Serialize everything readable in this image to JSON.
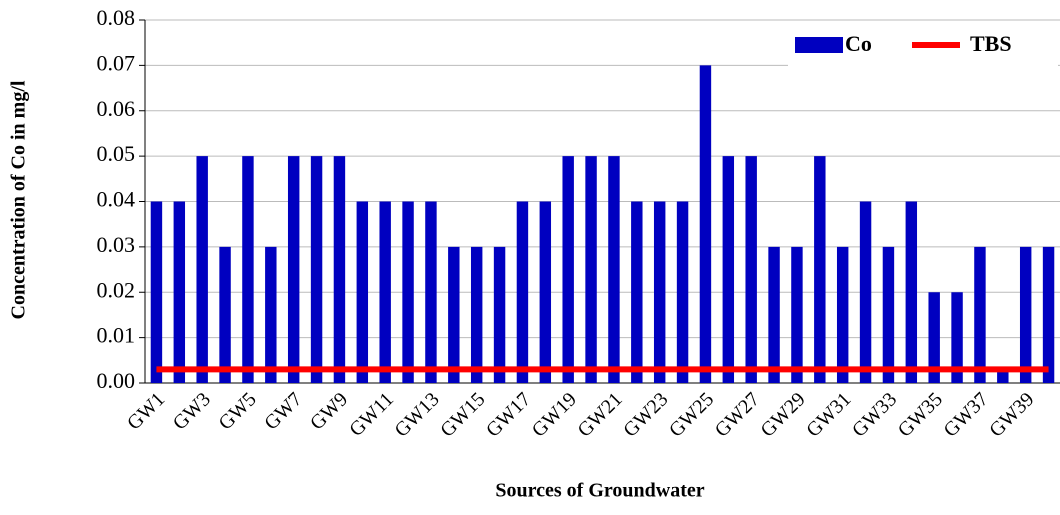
{
  "chart_data": {
    "type": "bar",
    "y_label": "Concentration of Co in mg/l",
    "x_label": "Sources of Groundwater",
    "categories": [
      "GW1",
      null,
      "GW3",
      null,
      "GW5",
      null,
      "GW7",
      null,
      "GW9",
      null,
      "GW11",
      null,
      "GW13",
      null,
      "GW15",
      null,
      "GW17",
      null,
      "GW19",
      null,
      "GW21",
      null,
      "GW23",
      null,
      "GW25",
      null,
      "GW27",
      null,
      "GW29",
      null,
      "GW31",
      null,
      "GW33",
      null,
      "GW35",
      null,
      "GW37",
      null,
      "GW39",
      null
    ],
    "series": [
      {
        "name": "Co",
        "type": "bar",
        "color": "#0000c0",
        "values": [
          0.04,
          0.04,
          0.05,
          0.03,
          0.05,
          0.03,
          0.05,
          0.05,
          0.05,
          0.04,
          0.04,
          0.04,
          0.04,
          0.03,
          0.03,
          0.03,
          0.04,
          0.04,
          0.05,
          0.05,
          0.05,
          0.04,
          0.04,
          0.04,
          0.07,
          0.05,
          0.05,
          0.03,
          0.03,
          0.05,
          0.03,
          0.04,
          0.03,
          0.04,
          0.02,
          0.02,
          0.03,
          0.003,
          0.03,
          0.03
        ]
      },
      {
        "name": "TBS",
        "type": "line",
        "color": "#ff0000",
        "values": [
          0.003,
          0.003,
          0.003,
          0.003,
          0.003,
          0.003,
          0.003,
          0.003,
          0.003,
          0.003,
          0.003,
          0.003,
          0.003,
          0.003,
          0.003,
          0.003,
          0.003,
          0.003,
          0.003,
          0.003,
          0.003,
          0.003,
          0.003,
          0.003,
          0.003,
          0.003,
          0.003,
          0.003,
          0.003,
          0.003,
          0.003,
          0.003,
          0.003,
          0.003,
          0.003,
          0.003,
          0.003,
          0.003,
          0.003,
          0.003
        ]
      }
    ],
    "ylim": [
      0,
      0.08
    ],
    "yticks": [
      {
        "value": 0,
        "label": "0.00"
      },
      {
        "value": 0.01,
        "label": "0.01"
      },
      {
        "value": 0.02,
        "label": "0.02"
      },
      {
        "value": 0.03,
        "label": "0.03"
      },
      {
        "value": 0.04,
        "label": "0.04"
      },
      {
        "value": 0.05,
        "label": "0.05"
      },
      {
        "value": 0.06,
        "label": "0.06"
      },
      {
        "value": 0.07,
        "label": "0.07"
      },
      {
        "value": 0.08,
        "label": "0.08"
      }
    ],
    "grid": true,
    "legend": "upper right"
  }
}
